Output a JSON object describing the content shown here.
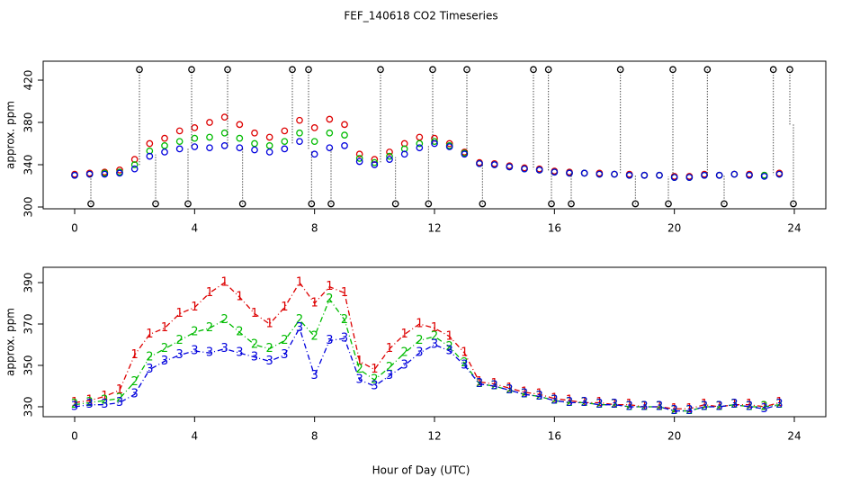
{
  "chart_data": [
    {
      "type": "scatter",
      "title": "FEF_140618  CO2 Timeseries",
      "ylabel": "approx. ppm",
      "xlim": [
        -1.05,
        25.05
      ],
      "ylim": [
        298.3,
        437.9
      ],
      "xticks": [
        0,
        4,
        8,
        12,
        16,
        20,
        24
      ],
      "yticks": [
        300,
        340,
        380,
        420
      ],
      "x": [
        0,
        0.5,
        1,
        1.5,
        2,
        2.5,
        3,
        3.5,
        4,
        4.5,
        5,
        5.5,
        6,
        6.5,
        7,
        7.5,
        8,
        8.5,
        9,
        9.5,
        10,
        10.5,
        11,
        11.5,
        12,
        12.5,
        13,
        13.5,
        14,
        14.5,
        15,
        15.5,
        16,
        16.5,
        17,
        17.5,
        18,
        18.5,
        19,
        19.5,
        20,
        20.5,
        21,
        21.5,
        22,
        22.5,
        23,
        23.5
      ],
      "series": [
        {
          "color": "#dd0000",
          "values": [
            331,
            332,
            333,
            335,
            345,
            360,
            365,
            372,
            375,
            380,
            385,
            378,
            370,
            366,
            372,
            382,
            375,
            383,
            378,
            350,
            345,
            352,
            360,
            366,
            365,
            360,
            352,
            342,
            341,
            339,
            337,
            336,
            334,
            333,
            332,
            332,
            331,
            331,
            330,
            330,
            329,
            329,
            331,
            330,
            331,
            331,
            330,
            332
          ]
        },
        {
          "color": "#00bb00",
          "values": [
            330,
            331,
            332,
            333,
            340,
            353,
            358,
            362,
            365,
            366,
            370,
            365,
            360,
            358,
            362,
            370,
            362,
            370,
            368,
            346,
            342,
            348,
            355,
            360,
            362,
            358,
            351,
            341,
            340,
            338,
            336,
            335,
            333,
            332,
            332,
            331,
            331,
            330,
            330,
            330,
            328,
            328,
            330,
            330,
            331,
            330,
            330,
            331
          ]
        },
        {
          "color": "#0000dd",
          "values": [
            330,
            331,
            331,
            332,
            336,
            348,
            352,
            355,
            357,
            356,
            358,
            356,
            354,
            352,
            355,
            362,
            350,
            356,
            358,
            343,
            340,
            345,
            350,
            356,
            360,
            357,
            350,
            341,
            340,
            338,
            336,
            335,
            333,
            332,
            332,
            331,
            331,
            330,
            330,
            330,
            328,
            328,
            330,
            330,
            331,
            330,
            329,
            331
          ]
        },
        {
          "color": "#000000",
          "x": [
            0.54,
            2.16,
            2.7,
            3.78,
            3.9,
            5.1,
            5.6,
            7.26,
            7.8,
            7.9,
            8.55,
            10.2,
            10.7,
            11.8,
            11.94,
            13.08,
            13.6,
            15.3,
            15.8,
            15.9,
            16.56,
            18.2,
            18.7,
            19.8,
            19.95,
            21.1,
            21.66,
            23.3,
            23.85,
            23.97
          ],
          "values": [
            303,
            430,
            303,
            303,
            430,
            430,
            303,
            430,
            430,
            303,
            303,
            430,
            303,
            303,
            430,
            430,
            303,
            430,
            430,
            303,
            303,
            430,
            303,
            303,
            430,
            430,
            303,
            430,
            430,
            303
          ]
        }
      ]
    },
    {
      "type": "line",
      "ylabel": "approx. ppm",
      "xlabel": "Hour of Day (UTC)",
      "xlim": [
        -1.05,
        25.05
      ],
      "ylim": [
        325.2,
        397.4
      ],
      "xticks": [
        0,
        4,
        8,
        12,
        16,
        20,
        24
      ],
      "yticks": [
        330,
        350,
        370,
        390
      ],
      "x": [
        0,
        0.5,
        1,
        1.5,
        2,
        2.5,
        3,
        3.5,
        4,
        4.5,
        5,
        5.5,
        6,
        6.5,
        7,
        7.5,
        8,
        8.5,
        9,
        9.5,
        10,
        10.5,
        11,
        11.5,
        12,
        12.5,
        13,
        13.5,
        14,
        14.5,
        15,
        15.5,
        16,
        16.5,
        17,
        17.5,
        18,
        18.5,
        19,
        19.5,
        20,
        20.5,
        21,
        21.5,
        22,
        22.5,
        23,
        23.5
      ],
      "series": [
        {
          "color": "#dd0000",
          "marker": "1",
          "values": [
            332,
            333,
            335,
            338,
            355,
            365,
            368,
            375,
            378,
            385,
            390,
            383,
            375,
            370,
            378,
            390,
            380,
            388,
            385,
            352,
            348,
            358,
            365,
            370,
            368,
            364,
            356,
            342,
            341,
            339,
            337,
            336,
            334,
            333,
            332,
            332,
            331,
            331,
            330,
            330,
            329,
            329,
            331,
            330,
            331,
            331,
            330,
            332
          ]
        },
        {
          "color": "#00bb00",
          "marker": "2",
          "values": [
            331,
            332,
            333,
            334,
            342,
            354,
            358,
            362,
            366,
            368,
            372,
            366,
            360,
            358,
            362,
            372,
            364,
            382,
            372,
            348,
            343,
            349,
            356,
            362,
            364,
            359,
            351,
            341,
            340,
            338,
            336,
            335,
            333,
            332,
            332,
            331,
            331,
            330,
            330,
            330,
            328,
            328,
            330,
            330,
            331,
            330,
            330,
            331
          ]
        },
        {
          "color": "#0000dd",
          "marker": "3",
          "values": [
            330,
            331,
            331,
            332,
            336,
            348,
            352,
            355,
            357,
            356,
            358,
            356,
            354,
            352,
            355,
            368,
            345,
            362,
            363,
            343,
            340,
            345,
            350,
            356,
            360,
            357,
            350,
            341,
            340,
            338,
            336,
            335,
            333,
            332,
            332,
            331,
            331,
            330,
            330,
            330,
            328,
            328,
            330,
            330,
            331,
            330,
            329,
            331
          ]
        }
      ]
    }
  ]
}
